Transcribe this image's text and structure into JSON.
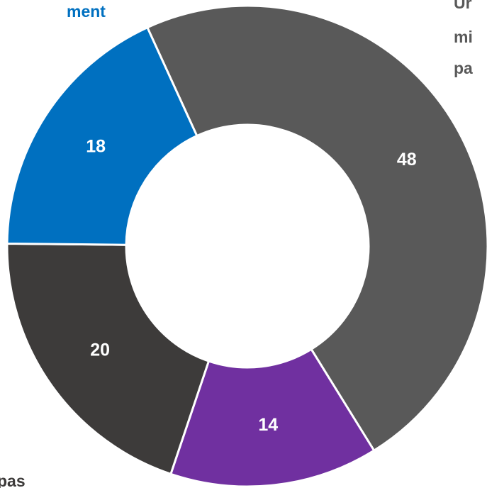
{
  "chart_data": {
    "type": "donut",
    "categories": [
      null,
      null,
      null,
      null
    ],
    "values": [
      48,
      14,
      20,
      18
    ],
    "colors": [
      "#595959",
      "#7030a0",
      "#3d3b3a",
      "#0070c0"
    ],
    "annotations": [
      {
        "text": "ment",
        "color": "#0070c0"
      },
      {
        "text": "Ur",
        "color": "#595959"
      },
      {
        "text": "mi",
        "color": "#595959"
      },
      {
        "text": "pa",
        "color": "#595959"
      },
      {
        "text": "pas",
        "color": "#3d3b3a"
      }
    ]
  }
}
